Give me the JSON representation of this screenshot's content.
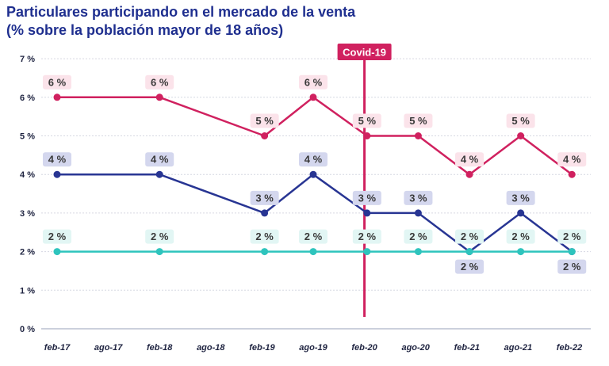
{
  "title": {
    "line1": "Particulares participando en el mercado de la venta",
    "line2": "(% sobre la población mayor de 18 años)"
  },
  "chart_data": {
    "type": "line",
    "title": "Particulares participando en el mercado de la venta (% sobre la población mayor de 18 años)",
    "categories": [
      "feb-17",
      "ago-17",
      "feb-18",
      "ago-18",
      "feb-19",
      "ago-19",
      "feb-20",
      "ago-20",
      "feb-21",
      "ago-21",
      "feb-22"
    ],
    "ylim": [
      0,
      7
    ],
    "yticks": [
      0,
      1,
      2,
      3,
      4,
      5,
      6,
      7
    ],
    "ytick_labels": [
      "0 %",
      "1 %",
      "2 %",
      "3 %",
      "4 %",
      "5 %",
      "6 %",
      "7 %"
    ],
    "grid": true,
    "annotation": {
      "label": "Covid-19",
      "x": "feb-20"
    },
    "series": [
      {
        "name": "serie-rosa",
        "color": "#d0215f",
        "label_bg": "#fbe3ea",
        "points": [
          {
            "x": 0,
            "value": 6,
            "label": "6 %",
            "pos": "above"
          },
          {
            "x": 2,
            "value": 6,
            "label": "6 %",
            "pos": "above"
          },
          {
            "x": 4.05,
            "value": 5,
            "label": "5 %",
            "pos": "above"
          },
          {
            "x": 5.0,
            "value": 6,
            "label": "6 %",
            "pos": "above"
          },
          {
            "x": 6.05,
            "value": 5,
            "label": "5 %",
            "pos": "above"
          },
          {
            "x": 7.05,
            "value": 5,
            "label": "5 %",
            "pos": "above"
          },
          {
            "x": 8.05,
            "value": 4,
            "label": "4 %",
            "pos": "above"
          },
          {
            "x": 9.05,
            "value": 5,
            "label": "5 %",
            "pos": "above"
          },
          {
            "x": 10.05,
            "value": 4,
            "label": "4 %",
            "pos": "above"
          }
        ]
      },
      {
        "name": "serie-azul",
        "color": "#283593",
        "label_bg": "#d4d7ee",
        "points": [
          {
            "x": 0,
            "value": 4,
            "label": "4 %",
            "pos": "above"
          },
          {
            "x": 2,
            "value": 4,
            "label": "4 %",
            "pos": "above"
          },
          {
            "x": 4.05,
            "value": 3,
            "label": "3 %",
            "pos": "above"
          },
          {
            "x": 5.0,
            "value": 4,
            "label": "4 %",
            "pos": "above"
          },
          {
            "x": 6.05,
            "value": 3,
            "label": "3 %",
            "pos": "above"
          },
          {
            "x": 7.05,
            "value": 3,
            "label": "3 %",
            "pos": "above"
          },
          {
            "x": 8.05,
            "value": 2,
            "label": "2 %",
            "pos": "below"
          },
          {
            "x": 9.05,
            "value": 3,
            "label": "3 %",
            "pos": "above"
          },
          {
            "x": 10.05,
            "value": 2,
            "label": "2 %",
            "pos": "below"
          }
        ]
      },
      {
        "name": "serie-turquesa",
        "color": "#2ec4bd",
        "label_bg": "#e2f6f4",
        "points": [
          {
            "x": 0,
            "value": 2,
            "label": "2 %",
            "pos": "above"
          },
          {
            "x": 2,
            "value": 2,
            "label": "2 %",
            "pos": "above"
          },
          {
            "x": 4.05,
            "value": 2,
            "label": "2 %",
            "pos": "above"
          },
          {
            "x": 5.0,
            "value": 2,
            "label": "2 %",
            "pos": "above"
          },
          {
            "x": 6.05,
            "value": 2,
            "label": "2 %",
            "pos": "above"
          },
          {
            "x": 7.05,
            "value": 2,
            "label": "2 %",
            "pos": "above"
          },
          {
            "x": 8.05,
            "value": 2,
            "label": "2 %",
            "pos": "above"
          },
          {
            "x": 9.05,
            "value": 2,
            "label": "2 %",
            "pos": "above"
          },
          {
            "x": 10.05,
            "value": 2,
            "label": "2 %",
            "pos": "above"
          }
        ]
      }
    ]
  }
}
